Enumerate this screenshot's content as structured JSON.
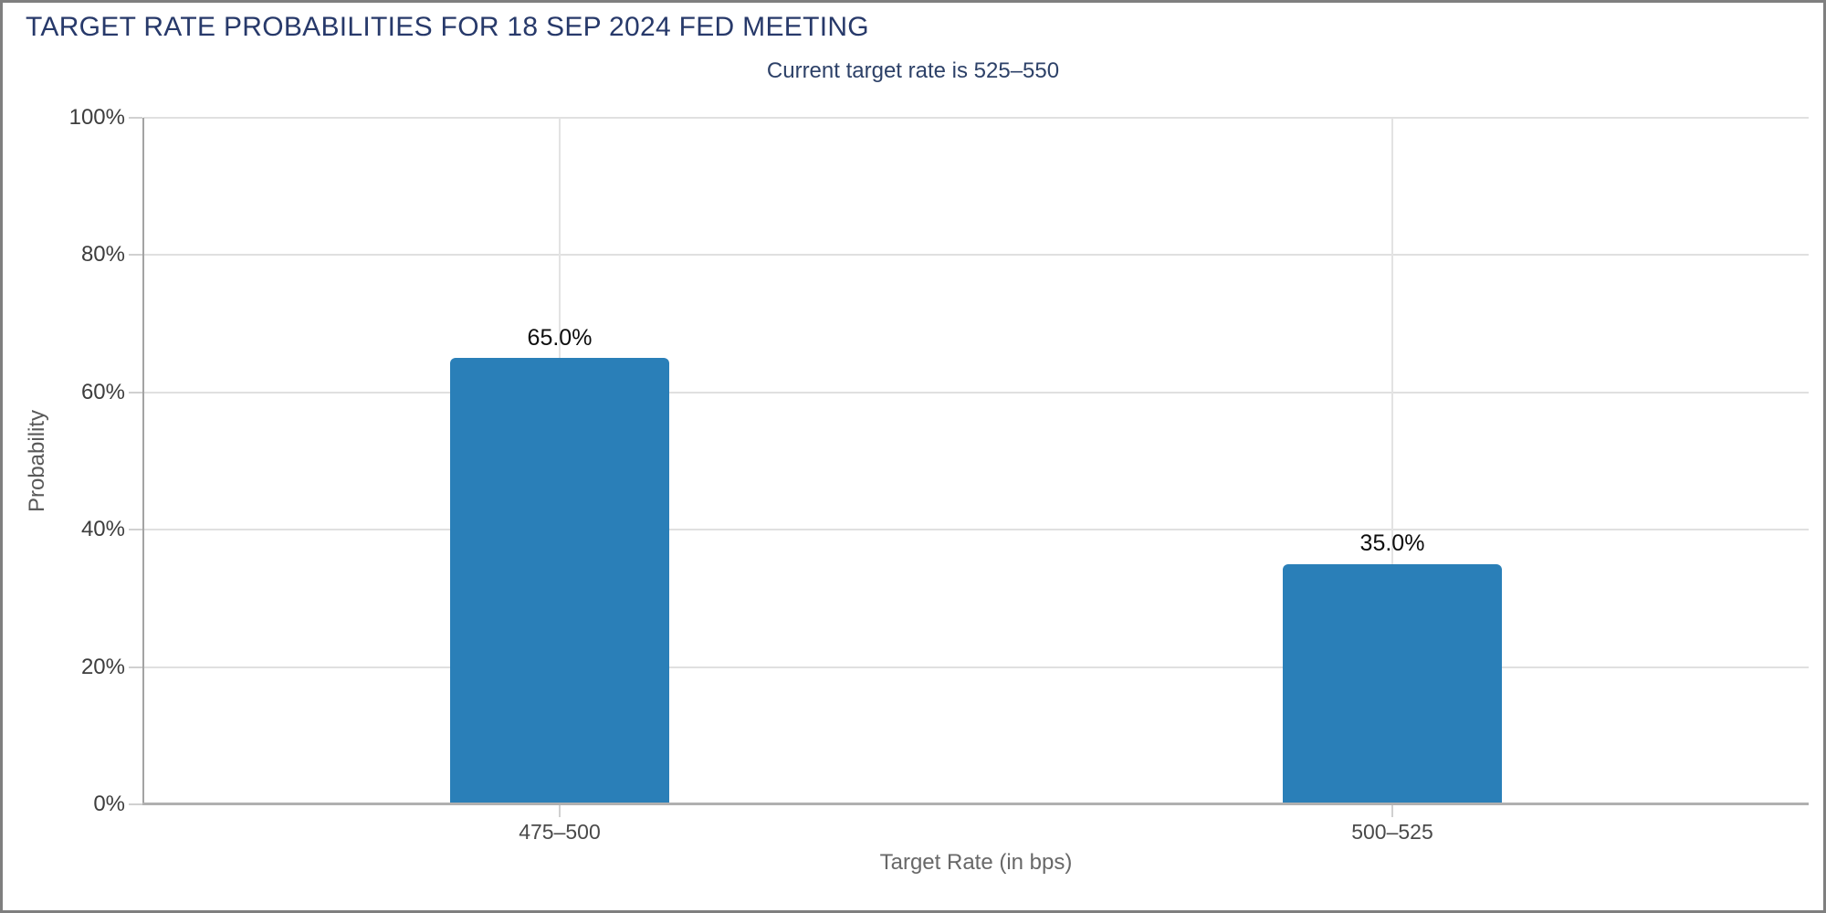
{
  "window": {
    "background": "#ffffff",
    "border_color": "#7f7f7f"
  },
  "chart_data": {
    "type": "bar",
    "title": "TARGET RATE PROBABILITIES FOR 18 SEP 2024 FED MEETING",
    "subtitle": "Current target rate is 525–550",
    "xlabel": "Target Rate (in bps)",
    "ylabel": "Probability",
    "categories": [
      "475–500",
      "500–525"
    ],
    "values": [
      65.0,
      35.0
    ],
    "value_labels": [
      "65.0%",
      "35.0%"
    ],
    "ylim": [
      0,
      100
    ],
    "ytick_labels": [
      "0%",
      "20%",
      "40%",
      "60%",
      "80%",
      "100%"
    ],
    "grid": true,
    "legend_position": "none",
    "bar_color": "#2a7fb8",
    "title_color": "#27396a",
    "subtitle_color": "#2d4168",
    "grid_color": "#e0e0e0",
    "axis_line_color": "#b0b0b0",
    "tick_label_color": "#3d3d3d",
    "value_label_color": "#0d0d0d"
  }
}
